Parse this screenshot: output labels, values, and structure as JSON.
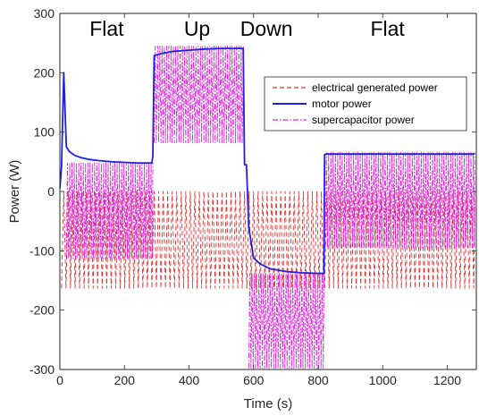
{
  "chart_data": {
    "type": "line",
    "xlabel": "Time (s)",
    "ylabel": "Power (W)",
    "xlim": [
      0,
      1290
    ],
    "ylim": [
      -300,
      300
    ],
    "xticks": [
      0,
      200,
      400,
      600,
      800,
      1000,
      1200
    ],
    "yticks": [
      -300,
      -200,
      -100,
      0,
      100,
      200,
      300
    ],
    "grid": false,
    "legend_position": "top-right",
    "annotations": [
      {
        "text": "Flat",
        "x": 145
      },
      {
        "text": "Up",
        "x": 425
      },
      {
        "text": "Down",
        "x": 640
      },
      {
        "text": "Flat",
        "x": 1015
      }
    ],
    "series": [
      {
        "name": "electrical generated power",
        "color": "#e8302f",
        "style": "dashed",
        "kind": "oscillation",
        "segments": [
          {
            "x_start": 5,
            "x_end": 820,
            "low": -163,
            "high": 0,
            "period": 14
          },
          {
            "x_start": 820,
            "x_end": 1285,
            "low": -163,
            "high": 0,
            "period": 14
          }
        ]
      },
      {
        "name": "motor power",
        "color": "#1f1fe6",
        "style": "solid",
        "kind": "line",
        "x": [
          0,
          5,
          12,
          20,
          30,
          45,
          65,
          90,
          120,
          160,
          200,
          240,
          285,
          288,
          292,
          320,
          350,
          400,
          450,
          500,
          540,
          568,
          572,
          578,
          585,
          600,
          620,
          650,
          700,
          750,
          800,
          818,
          820,
          825,
          900,
          1000,
          1100,
          1200,
          1285
        ],
        "y": [
          5,
          40,
          200,
          75,
          67,
          61,
          57,
          54,
          52,
          50,
          49,
          48,
          48,
          60,
          229,
          233,
          236,
          238,
          240,
          241,
          241,
          241,
          45,
          45,
          -60,
          -112,
          -122,
          -130,
          -135,
          -137,
          -138,
          -138,
          62,
          63,
          63,
          63,
          63,
          63,
          63
        ]
      },
      {
        "name": "supercapacitor power",
        "color": "#e020e0",
        "style": "dashdot",
        "kind": "oscillation",
        "segments": [
          {
            "x_start": 20,
            "x_end": 288,
            "low": -113,
            "high": 48,
            "period": 7
          },
          {
            "x_start": 292,
            "x_end": 570,
            "low": 82,
            "high": 245,
            "period": 7
          },
          {
            "x_start": 585,
            "x_end": 818,
            "low": -298,
            "high": -138,
            "period": 7
          },
          {
            "x_start": 822,
            "x_end": 1285,
            "low": -95,
            "high": 66,
            "period": 7
          }
        ]
      }
    ]
  }
}
